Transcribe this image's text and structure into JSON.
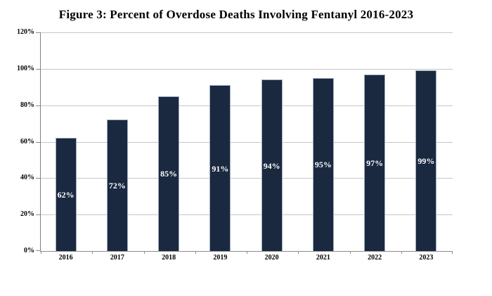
{
  "chart_data": {
    "type": "bar",
    "title": "Figure 3: Percent of Overdose Deaths Involving Fentanyl 2016-2023",
    "categories": [
      "2016",
      "2017",
      "2018",
      "2019",
      "2020",
      "2021",
      "2022",
      "2023"
    ],
    "values": [
      62,
      72,
      85,
      91,
      94,
      95,
      97,
      99
    ],
    "bar_labels": [
      "62%",
      "72%",
      "85%",
      "91%",
      "94%",
      "95%",
      "97%",
      "99%"
    ],
    "xlabel": "",
    "ylabel": "",
    "ylim": [
      0,
      120
    ],
    "yticks": [
      {
        "value": 0,
        "label": "0%"
      },
      {
        "value": 20,
        "label": "20%"
      },
      {
        "value": 40,
        "label": "40%"
      },
      {
        "value": 60,
        "label": "60%"
      },
      {
        "value": 80,
        "label": "80%"
      },
      {
        "value": 100,
        "label": "100%"
      },
      {
        "value": 120,
        "label": "120%"
      }
    ],
    "grid": true,
    "legend": false,
    "bar_label_position": "inside-middle",
    "colors": {
      "bar_fill": "#1a2940",
      "bar_edge": "#9fadbf",
      "bar_label": "#ffffff",
      "gridline": "#c6c6c6",
      "axis": "#8c8c8c",
      "title_text": "#000000",
      "tick_text": "#000000",
      "background": "#ffffff"
    }
  }
}
